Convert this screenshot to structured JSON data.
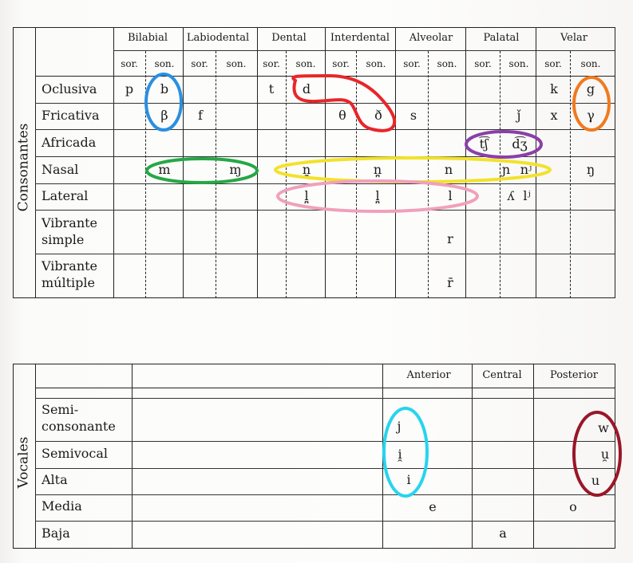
{
  "consonants": {
    "side_label": "Consonantes",
    "places": [
      {
        "label": "Bilabial",
        "sor": "sor.",
        "son": "son."
      },
      {
        "label": "Labiodental",
        "sor": "sor.",
        "son": "son."
      },
      {
        "label": "Dental",
        "sor": "sor.",
        "son": "son."
      },
      {
        "label": "Interdental",
        "sor": "sor.",
        "son": "son."
      },
      {
        "label": "Alveolar",
        "sor": "sor.",
        "son": "son."
      },
      {
        "label": "Palatal",
        "sor": "sor.",
        "son": "son."
      },
      {
        "label": "Velar",
        "sor": "sor.",
        "son": "son."
      }
    ],
    "manners": [
      {
        "label": "Oclusiva"
      },
      {
        "label": "Fricativa"
      },
      {
        "label": "Africada"
      },
      {
        "label": "Nasal"
      },
      {
        "label": "Lateral"
      },
      {
        "label": "Vibrante",
        "label2": "simple"
      },
      {
        "label": "Vibrante",
        "label2": "múltiple"
      }
    ],
    "symbols": {
      "oclusiva": {
        "p": "p",
        "b": "b",
        "t": "t",
        "d": "d",
        "k": "k",
        "g": "g"
      },
      "fricativa": {
        "beta": "β",
        "f": "f",
        "theta": "θ",
        "eth": "ð",
        "s": "s",
        "j_wedge": "ǰ",
        "x": "x",
        "gamma": "γ"
      },
      "africada": {
        "ch": "t͡ʃ",
        "dzh": "d͡ʒ"
      },
      "nasal": {
        "m": "m",
        "m_labiodental": "ɱ",
        "n_dental": "n̪",
        "n_interdental": "n̪",
        "n": "n",
        "n_palatal": "ɲ",
        "n_palatalized": "nʲ",
        "n_velar": "ŋ"
      },
      "lateral": {
        "l_dental": "l̪",
        "l_interdental": "l̪",
        "l": "l",
        "l_palatal": "ʎ",
        "l_palatalized": "lʲ"
      },
      "vibrante_simple": {
        "r": "r"
      },
      "vibrante_multiple": {
        "rr": "r̄"
      }
    }
  },
  "vowels": {
    "side_label": "Vocales",
    "columns": [
      {
        "label": "Anterior"
      },
      {
        "label": "Central"
      },
      {
        "label": "Posterior"
      }
    ],
    "rows": [
      {
        "label": "Semi-",
        "label2": "consonante"
      },
      {
        "label": "Semivocal"
      },
      {
        "label": "Alta"
      },
      {
        "label": "Media"
      },
      {
        "label": "Baja"
      }
    ],
    "symbols": {
      "semiconsonante": {
        "j": "j",
        "w": "w"
      },
      "semivocal": {
        "i_nonsyllabic": "i̯",
        "u_nonsyllabic": "u̯"
      },
      "alta": {
        "i": "i",
        "u": "u"
      },
      "media": {
        "e": "e",
        "o": "o"
      },
      "baja": {
        "a": "a"
      }
    }
  },
  "highlight_colors": {
    "blue": "#2a8fe0",
    "red": "#e8262a",
    "orange": "#f07a1e",
    "purple": "#8a3fa8",
    "green": "#25a846",
    "yellow": "#f2e22a",
    "pink": "#f0a0bc",
    "cyan": "#27d4ee",
    "dark_red": "#9a1628"
  }
}
